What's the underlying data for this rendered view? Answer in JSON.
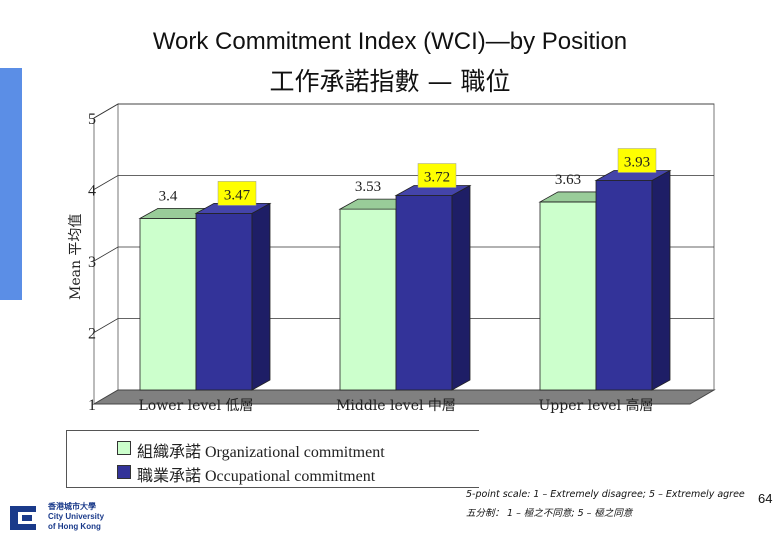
{
  "title_en": "Work Commitment Index (WCI)—by Position",
  "title_zh": "工作承諾指數 — 職位",
  "chart_data": {
    "type": "bar",
    "categories": [
      "Lower level 低層",
      "Middle level 中層",
      "Upper level 高層"
    ],
    "series": [
      {
        "name": "組織承諾  Organizational commitment",
        "values": [
          3.4,
          3.53,
          3.63
        ],
        "labels": [
          "3.4",
          "3.53",
          "3.63"
        ],
        "color": "#ccffcc"
      },
      {
        "name": "職業承諾  Occupational commitment",
        "values": [
          3.47,
          3.72,
          3.93
        ],
        "labels": [
          "3.47",
          "3.72",
          "3.93"
        ],
        "color": "#333399"
      }
    ],
    "ylabel": "Mean 平均值",
    "ylim": [
      1,
      5
    ],
    "yticks": [
      "1",
      "2",
      "3",
      "4",
      "5"
    ],
    "grid": true,
    "legend": "bottom",
    "highlight_color": "#ffff00"
  },
  "note_line1": "5-point scale: 1 – Extremely disagree; 5 – Extremely agree",
  "note_line2": "五分制： 1 – 極之不同意; 5 – 極之同意",
  "page_number": "64",
  "logo": {
    "zh": "香港城市大學",
    "en1": "City University",
    "en2": "of Hong Kong"
  }
}
